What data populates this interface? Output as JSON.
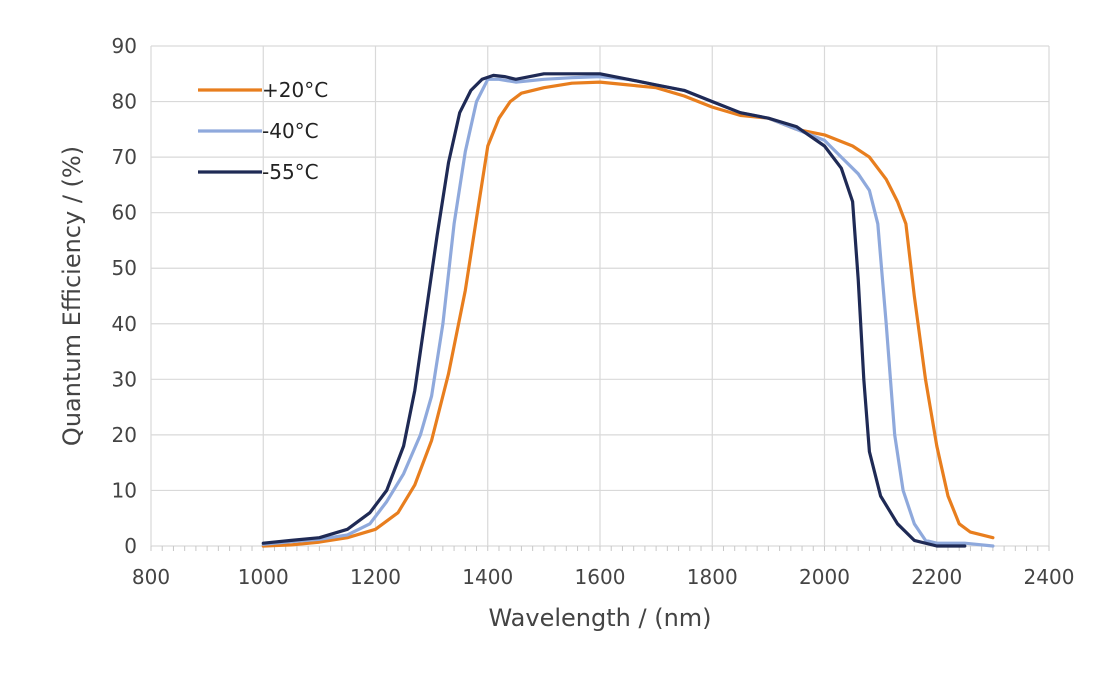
{
  "chart_data": {
    "type": "line",
    "title": "",
    "xlabel": "Wavelength / (nm)",
    "ylabel": "Quantum Efficiency / (%)",
    "xlim": [
      800,
      2400
    ],
    "ylim": [
      0,
      90
    ],
    "xticks": [
      800,
      1000,
      1200,
      1400,
      1600,
      1800,
      2000,
      2200,
      2400
    ],
    "yticks": [
      0,
      10,
      20,
      30,
      40,
      50,
      60,
      70,
      80,
      90
    ],
    "grid": true,
    "legend_position": "top-left",
    "series": [
      {
        "name": "+20°C",
        "color": "#e87e1e",
        "points": [
          [
            1000,
            0
          ],
          [
            1050,
            0.2
          ],
          [
            1100,
            0.7
          ],
          [
            1150,
            1.5
          ],
          [
            1200,
            3
          ],
          [
            1240,
            6
          ],
          [
            1270,
            11
          ],
          [
            1300,
            19
          ],
          [
            1330,
            31
          ],
          [
            1360,
            46
          ],
          [
            1380,
            59
          ],
          [
            1400,
            72
          ],
          [
            1420,
            77
          ],
          [
            1440,
            80
          ],
          [
            1460,
            81.5
          ],
          [
            1500,
            82.5
          ],
          [
            1550,
            83.3
          ],
          [
            1600,
            83.5
          ],
          [
            1650,
            83
          ],
          [
            1700,
            82.5
          ],
          [
            1750,
            81
          ],
          [
            1800,
            79
          ],
          [
            1850,
            77.5
          ],
          [
            1900,
            77
          ],
          [
            1950,
            75
          ],
          [
            2000,
            74
          ],
          [
            2050,
            72
          ],
          [
            2080,
            70
          ],
          [
            2110,
            66
          ],
          [
            2130,
            62
          ],
          [
            2145,
            58
          ],
          [
            2160,
            45
          ],
          [
            2180,
            30
          ],
          [
            2200,
            18
          ],
          [
            2220,
            9
          ],
          [
            2240,
            4
          ],
          [
            2260,
            2.5
          ],
          [
            2300,
            1.5
          ]
        ]
      },
      {
        "name": "-40°C",
        "color": "#8fa9dc",
        "points": [
          [
            1000,
            0.3
          ],
          [
            1050,
            0.8
          ],
          [
            1100,
            1.2
          ],
          [
            1150,
            2
          ],
          [
            1190,
            4
          ],
          [
            1220,
            8
          ],
          [
            1250,
            13
          ],
          [
            1280,
            20
          ],
          [
            1300,
            27
          ],
          [
            1320,
            40
          ],
          [
            1340,
            58
          ],
          [
            1360,
            71
          ],
          [
            1380,
            80
          ],
          [
            1400,
            84
          ],
          [
            1420,
            84
          ],
          [
            1450,
            83.5
          ],
          [
            1500,
            84
          ],
          [
            1550,
            84.3
          ],
          [
            1600,
            84.5
          ],
          [
            1650,
            84
          ],
          [
            1700,
            83
          ],
          [
            1750,
            82
          ],
          [
            1800,
            80
          ],
          [
            1850,
            78
          ],
          [
            1900,
            77
          ],
          [
            1950,
            75
          ],
          [
            2000,
            73
          ],
          [
            2030,
            70
          ],
          [
            2060,
            67
          ],
          [
            2080,
            64
          ],
          [
            2095,
            58
          ],
          [
            2110,
            40
          ],
          [
            2125,
            20
          ],
          [
            2140,
            10
          ],
          [
            2160,
            4
          ],
          [
            2180,
            1
          ],
          [
            2200,
            0.5
          ],
          [
            2250,
            0.5
          ],
          [
            2300,
            0
          ]
        ]
      },
      {
        "name": "-55°C",
        "color": "#1f2a55",
        "points": [
          [
            1000,
            0.5
          ],
          [
            1050,
            1
          ],
          [
            1100,
            1.5
          ],
          [
            1150,
            3
          ],
          [
            1190,
            6
          ],
          [
            1220,
            10
          ],
          [
            1250,
            18
          ],
          [
            1270,
            28
          ],
          [
            1290,
            42
          ],
          [
            1310,
            56
          ],
          [
            1330,
            69
          ],
          [
            1350,
            78
          ],
          [
            1370,
            82
          ],
          [
            1390,
            84
          ],
          [
            1410,
            84.7
          ],
          [
            1430,
            84.5
          ],
          [
            1450,
            84
          ],
          [
            1500,
            85
          ],
          [
            1550,
            85
          ],
          [
            1600,
            85
          ],
          [
            1650,
            84
          ],
          [
            1700,
            83
          ],
          [
            1750,
            82
          ],
          [
            1800,
            80
          ],
          [
            1850,
            78
          ],
          [
            1900,
            77
          ],
          [
            1950,
            75.5
          ],
          [
            2000,
            72
          ],
          [
            2030,
            68
          ],
          [
            2050,
            62
          ],
          [
            2060,
            48
          ],
          [
            2070,
            30
          ],
          [
            2080,
            17
          ],
          [
            2100,
            9
          ],
          [
            2130,
            4
          ],
          [
            2160,
            1
          ],
          [
            2200,
            0
          ],
          [
            2250,
            0
          ]
        ]
      }
    ]
  }
}
